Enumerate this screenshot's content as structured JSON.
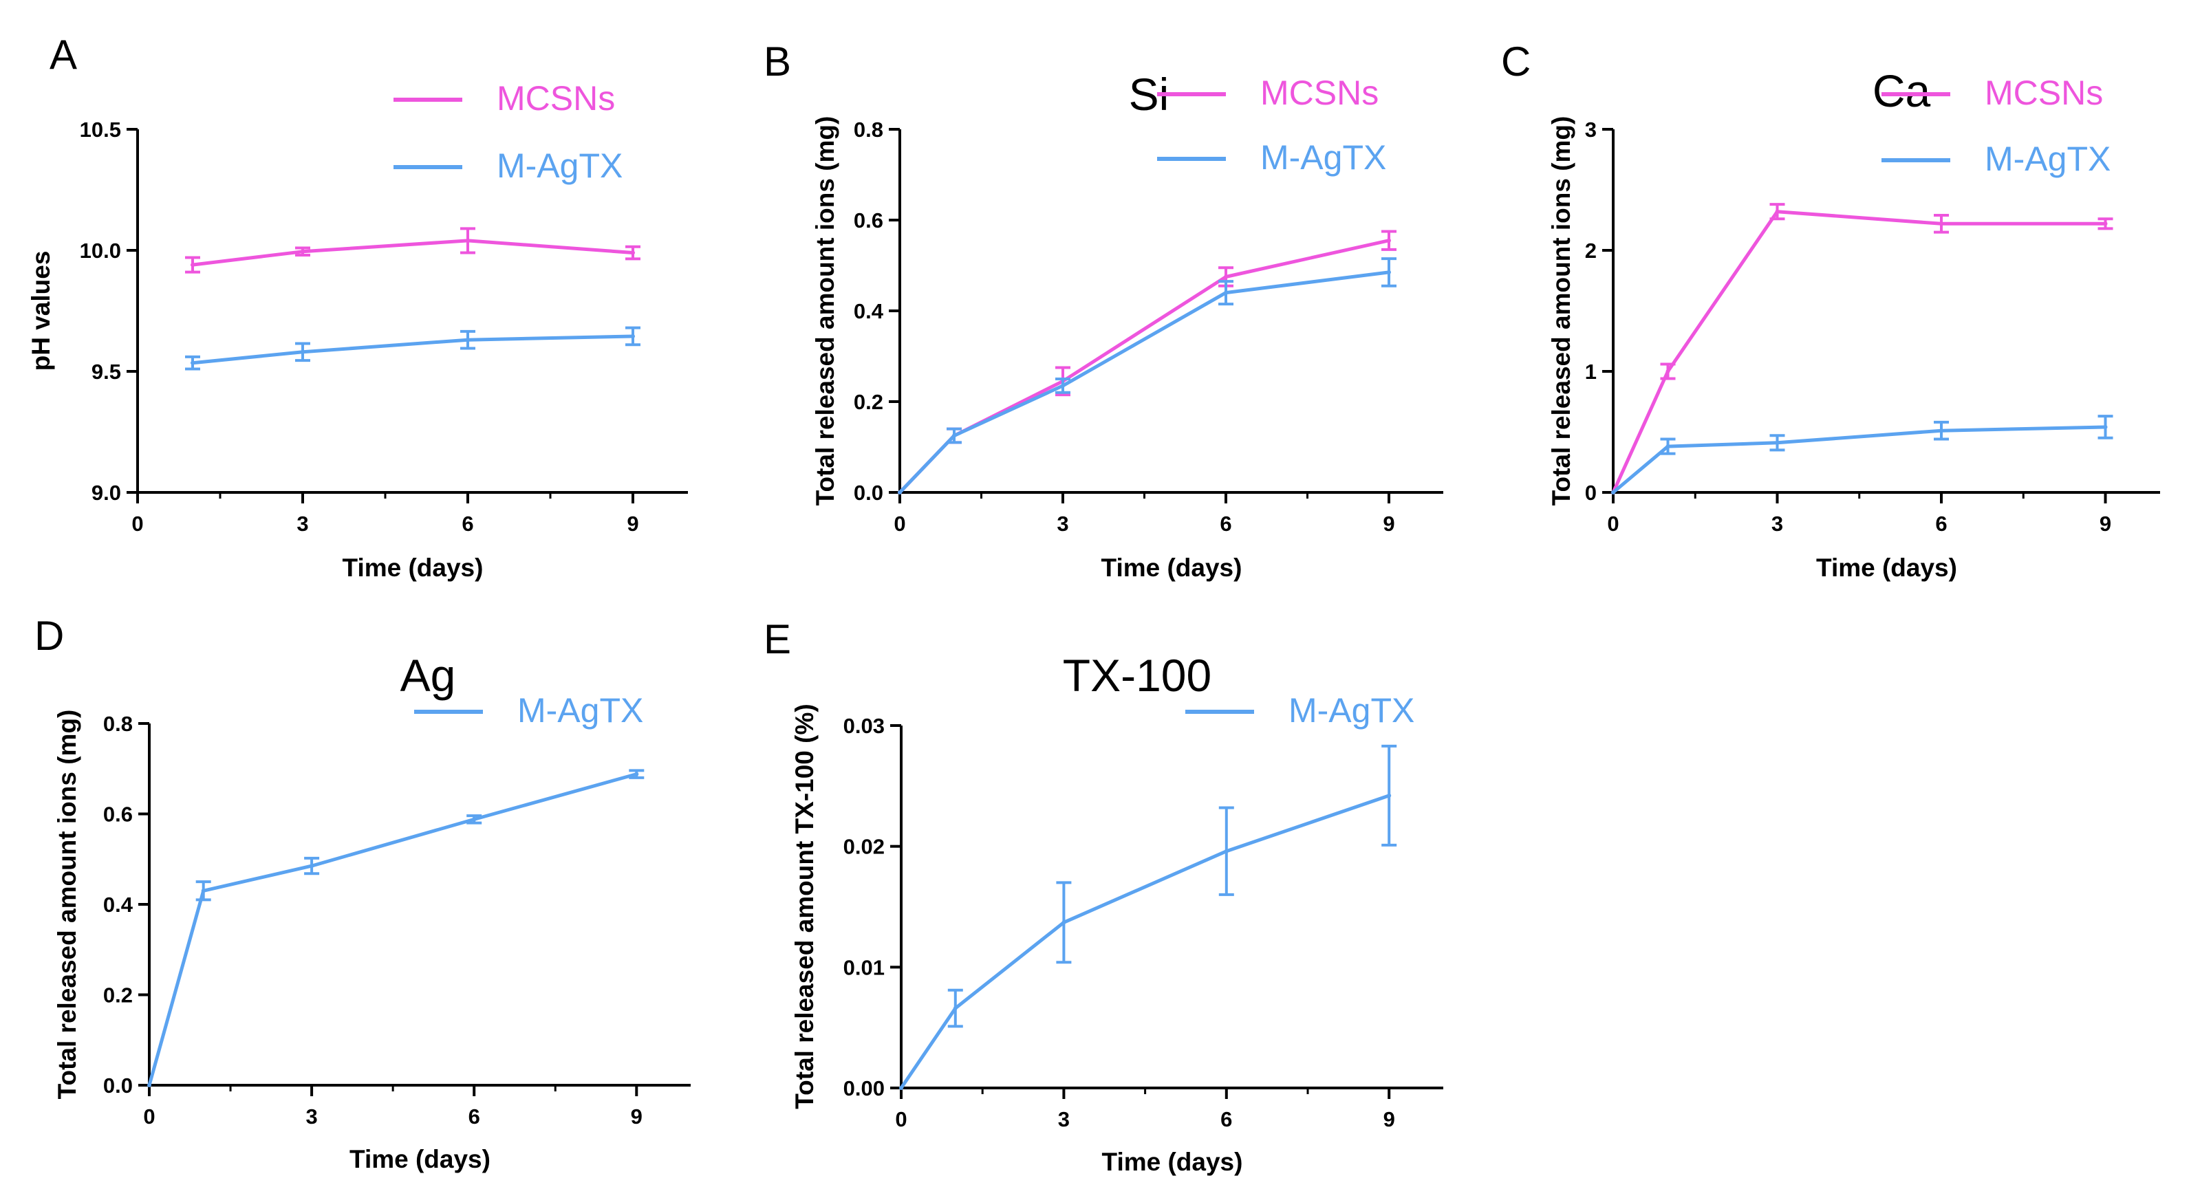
{
  "colors": {
    "MCSNs": "#ee55dd",
    "M-AgTX": "#5ba3f0",
    "axis": "#000000"
  },
  "chart_data": [
    {
      "type": "line",
      "panel": "A",
      "title": "",
      "xlabel": "Time (days)",
      "ylabel": "pH values",
      "xlim": [
        0,
        10
      ],
      "ylim": [
        9.0,
        10.5
      ],
      "xticks": [
        0,
        3,
        6,
        9
      ],
      "xtick_labels": [
        "0",
        "3",
        "6",
        "9"
      ],
      "yticks": [
        9.0,
        9.5,
        10.0,
        10.5
      ],
      "ytick_labels": [
        "9.0",
        "9.5",
        "10.0",
        "10.5"
      ],
      "xminor": [
        1.5,
        4.5,
        7.5
      ],
      "legend": "top-right",
      "series": [
        {
          "name": "MCSNs",
          "color_key": "MCSNs",
          "x": [
            1,
            3,
            6,
            9
          ],
          "values": [
            9.94,
            9.995,
            10.04,
            9.99
          ],
          "errors": [
            0.03,
            0.015,
            0.05,
            0.025
          ]
        },
        {
          "name": "M-AgTX",
          "color_key": "M-AgTX",
          "x": [
            1,
            3,
            6,
            9
          ],
          "values": [
            9.535,
            9.58,
            9.63,
            9.645
          ],
          "errors": [
            0.025,
            0.035,
            0.035,
            0.035
          ]
        }
      ]
    },
    {
      "type": "line",
      "panel": "B",
      "title": "Si",
      "xlabel": "Time (days)",
      "ylabel": "Total released amount ions (mg)",
      "xlim": [
        0,
        10
      ],
      "ylim": [
        0,
        0.8
      ],
      "xticks": [
        0,
        3,
        6,
        9
      ],
      "xtick_labels": [
        "0",
        "3",
        "6",
        "9"
      ],
      "yticks": [
        0,
        0.2,
        0.4,
        0.6,
        0.8
      ],
      "ytick_labels": [
        "0.0",
        "0.2",
        "0.4",
        "0.6",
        "0.8"
      ],
      "xminor": [
        1.5,
        4.5,
        7.5
      ],
      "legend": "top-right",
      "series": [
        {
          "name": "MCSNs",
          "color_key": "MCSNs",
          "x": [
            0,
            1,
            3,
            6,
            9
          ],
          "values": [
            0,
            0.125,
            0.245,
            0.475,
            0.555
          ],
          "errors": [
            0,
            0.015,
            0.03,
            0.02,
            0.02
          ]
        },
        {
          "name": "M-AgTX",
          "color_key": "M-AgTX",
          "x": [
            0,
            1,
            3,
            6,
            9
          ],
          "values": [
            0,
            0.125,
            0.235,
            0.44,
            0.485
          ],
          "errors": [
            0,
            0.015,
            0.015,
            0.025,
            0.03
          ]
        }
      ]
    },
    {
      "type": "line",
      "panel": "C",
      "title": "Ca",
      "xlabel": "Time (days)",
      "ylabel": "Total released amount ions (mg)",
      "xlim": [
        0,
        10
      ],
      "ylim": [
        0,
        3
      ],
      "xticks": [
        0,
        3,
        6,
        9
      ],
      "xtick_labels": [
        "0",
        "3",
        "6",
        "9"
      ],
      "yticks": [
        0,
        1,
        2,
        3
      ],
      "ytick_labels": [
        "0",
        "1",
        "2",
        "3"
      ],
      "xminor": [
        1.5,
        4.5,
        7.5
      ],
      "legend": "top-right",
      "series": [
        {
          "name": "MCSNs",
          "color_key": "MCSNs",
          "x": [
            0,
            1,
            3,
            6,
            9
          ],
          "values": [
            0,
            1.0,
            2.32,
            2.22,
            2.22
          ],
          "errors": [
            0,
            0.06,
            0.06,
            0.07,
            0.04
          ]
        },
        {
          "name": "M-AgTX",
          "color_key": "M-AgTX",
          "x": [
            0,
            1,
            3,
            6,
            9
          ],
          "values": [
            0,
            0.38,
            0.41,
            0.51,
            0.54
          ],
          "errors": [
            0,
            0.06,
            0.06,
            0.07,
            0.09
          ]
        }
      ]
    },
    {
      "type": "line",
      "panel": "D",
      "title": "Ag",
      "xlabel": "Time (days)",
      "ylabel": "Total released amount ions (mg)",
      "xlim": [
        0,
        10
      ],
      "ylim": [
        0,
        0.8
      ],
      "xticks": [
        0,
        3,
        6,
        9
      ],
      "xtick_labels": [
        "0",
        "3",
        "6",
        "9"
      ],
      "yticks": [
        0,
        0.2,
        0.4,
        0.6,
        0.8
      ],
      "ytick_labels": [
        "0.0",
        "0.2",
        "0.4",
        "0.6",
        "0.8"
      ],
      "xminor": [
        1.5,
        4.5,
        7.5
      ],
      "legend": "top-right",
      "series": [
        {
          "name": "M-AgTX",
          "color_key": "M-AgTX",
          "x": [
            0,
            1,
            3,
            6,
            9
          ],
          "values": [
            0,
            0.43,
            0.485,
            0.588,
            0.688
          ],
          "errors": [
            0,
            0.02,
            0.017,
            0.008,
            0.008
          ]
        }
      ]
    },
    {
      "type": "line",
      "panel": "E",
      "title": "TX-100",
      "xlabel": "Time (days)",
      "ylabel": "Total released amount TX-100 (%)",
      "xlim": [
        0,
        10
      ],
      "ylim": [
        0,
        0.03
      ],
      "xticks": [
        0,
        3,
        6,
        9
      ],
      "xtick_labels": [
        "0",
        "3",
        "6",
        "9"
      ],
      "yticks": [
        0,
        0.01,
        0.02,
        0.03
      ],
      "ytick_labels": [
        "0.00",
        "0.01",
        "0.02",
        "0.03"
      ],
      "xminor": [
        1.5,
        4.5,
        7.5
      ],
      "legend": "top-right",
      "series": [
        {
          "name": "M-AgTX",
          "color_key": "M-AgTX",
          "x": [
            0,
            1,
            3,
            6,
            9
          ],
          "values": [
            0,
            0.0066,
            0.0137,
            0.0196,
            0.0242
          ],
          "errors": [
            0,
            0.0015,
            0.0033,
            0.0036,
            0.0041
          ]
        }
      ]
    }
  ]
}
